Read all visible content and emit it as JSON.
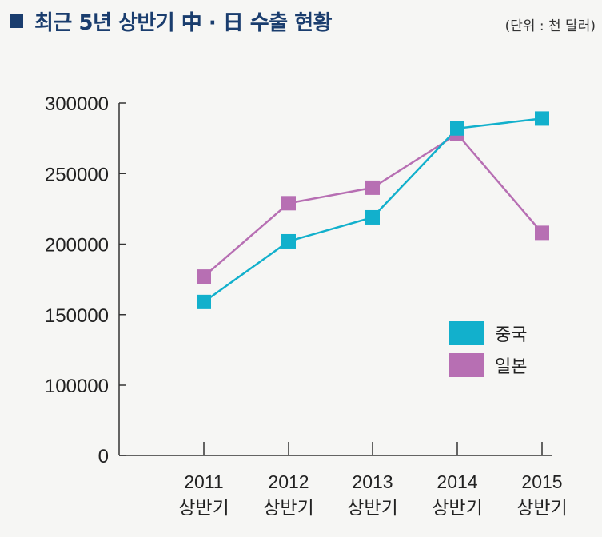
{
  "header": {
    "title": "최근 5년 상반기 中 · 日 수출 현황",
    "unit": "(단위 : 천 달러)"
  },
  "colors": {
    "title": "#1a3d6e",
    "china": "#12b0cc",
    "japan": "#b76fb3"
  },
  "chart_data": {
    "type": "line",
    "title": "최근 5년 상반기 中 · 日 수출 현황",
    "unit": "(단위 : 천 달러)",
    "categories": [
      [
        "2011",
        "상반기"
      ],
      [
        "2012",
        "상반기"
      ],
      [
        "2013",
        "상반기"
      ],
      [
        "2014",
        "상반기"
      ],
      [
        "2015",
        "상반기"
      ]
    ],
    "y_ticks": [
      "0",
      "100000",
      "150000",
      "200000",
      "250000",
      "300000"
    ],
    "y_tick_values": [
      0,
      100000,
      150000,
      200000,
      250000,
      300000
    ],
    "ylim": [
      0,
      300000
    ],
    "axis_break": "0 to 100000 compressed",
    "grid": false,
    "legend_position": "lower-right",
    "series": [
      {
        "name": "중국",
        "values": [
          159000,
          202000,
          219000,
          282000,
          289000
        ],
        "color": "#12b0cc"
      },
      {
        "name": "일본",
        "values": [
          177000,
          229000,
          240000,
          278000,
          208000
        ],
        "color": "#b76fb3"
      }
    ]
  }
}
